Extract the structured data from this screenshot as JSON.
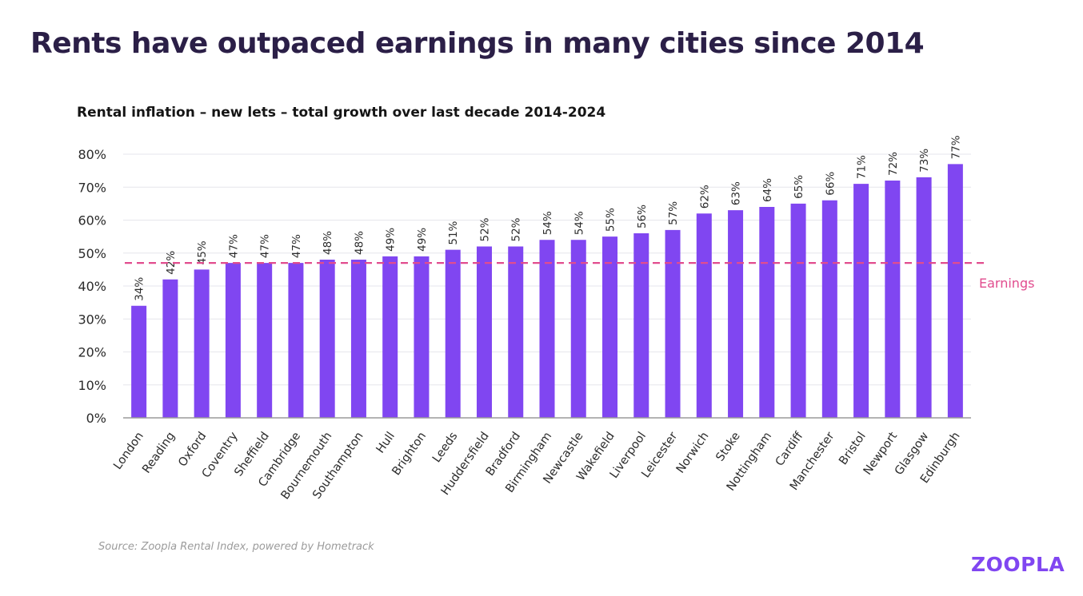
{
  "title": "Rents have outpaced earnings in many cities since 2014",
  "source": "Source: Zoopla Rental Index, powered by Hometrack",
  "logo": "ZOOPLA",
  "colors": {
    "bar": "#8046f1",
    "earnings_line": "#e14c8e",
    "grid": "#e6e6ec"
  },
  "chart_data": {
    "type": "bar",
    "title": "Rental inflation – new lets – total growth over last decade 2014-2024",
    "xlabel": "",
    "ylabel": "",
    "ylim": [
      0,
      80
    ],
    "yticks": [
      "0%",
      "10%",
      "20%",
      "30%",
      "40%",
      "50%",
      "60%",
      "70%",
      "80%"
    ],
    "grid": true,
    "categories": [
      "London",
      "Reading",
      "Oxford",
      "Coventry",
      "Sheffield",
      "Cambridge",
      "Bournemouth",
      "Southampton",
      "Hull",
      "Brighton",
      "Leeds",
      "Huddersfield",
      "Bradford",
      "Birmingham",
      "Newcastle",
      "Wakefield",
      "Liverpool",
      "Leicester",
      "Norwich",
      "Stoke",
      "Nottingham",
      "Cardiff",
      "Manchester",
      "Bristol",
      "Newport",
      "Glasgow",
      "Edinburgh"
    ],
    "values": [
      34,
      42,
      45,
      47,
      47,
      47,
      48,
      48,
      49,
      49,
      51,
      52,
      52,
      54,
      54,
      55,
      56,
      57,
      62,
      63,
      64,
      65,
      66,
      71,
      72,
      73,
      77
    ],
    "data_labels": [
      "34%",
      "42%",
      "45%",
      "47%",
      "47%",
      "47%",
      "48%",
      "48%",
      "49%",
      "49%",
      "51%",
      "52%",
      "52%",
      "54%",
      "54%",
      "55%",
      "56%",
      "57%",
      "62%",
      "63%",
      "64%",
      "65%",
      "66%",
      "71%",
      "72%",
      "73%",
      "77%"
    ],
    "reference_line": {
      "label": "Earnings",
      "value": 47,
      "style": "dashed"
    }
  }
}
